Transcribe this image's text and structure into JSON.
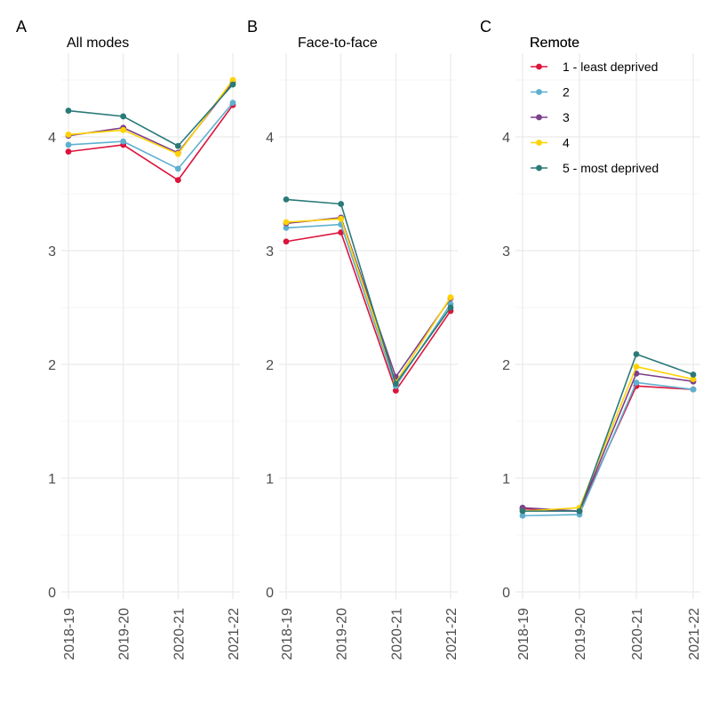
{
  "legend": {
    "title": "Remote",
    "groups": [
      {
        "label": "1 - least deprived",
        "color": "#dc143c"
      },
      {
        "label": "2",
        "color": "#5fb0d0"
      },
      {
        "label": "3",
        "color": "#7b3f8c"
      },
      {
        "label": "4",
        "color": "#ffd200"
      },
      {
        "label": "5 - most deprived",
        "color": "#2a7a78"
      }
    ]
  },
  "chart_data": [
    {
      "type": "line",
      "panel_letter": "A",
      "title": "All modes",
      "categories": [
        "2018-19",
        "2019-20",
        "2020-21",
        "2021-22"
      ],
      "ylim": [
        0,
        4.7
      ],
      "yticks": [
        "0",
        "1",
        "2",
        "3",
        "4"
      ],
      "series": [
        {
          "name": "1 - least deprived",
          "values": [
            3.87,
            3.93,
            3.62,
            4.28
          ]
        },
        {
          "name": "2",
          "values": [
            3.93,
            3.96,
            3.72,
            4.3
          ]
        },
        {
          "name": "3",
          "values": [
            4.01,
            4.08,
            3.86,
            4.48
          ]
        },
        {
          "name": "4",
          "values": [
            4.02,
            4.06,
            3.85,
            4.5
          ]
        },
        {
          "name": "5 - most deprived",
          "values": [
            4.23,
            4.18,
            3.92,
            4.46
          ]
        }
      ]
    },
    {
      "type": "line",
      "panel_letter": "B",
      "title": "Face-to-face",
      "categories": [
        "2018-19",
        "2019-20",
        "2020-21",
        "2021-22"
      ],
      "ylim": [
        0,
        4.7
      ],
      "yticks": [
        "0",
        "1",
        "2",
        "3",
        "4"
      ],
      "series": [
        {
          "name": "1 - least deprived",
          "values": [
            3.08,
            3.16,
            1.77,
            2.47
          ]
        },
        {
          "name": "2",
          "values": [
            3.2,
            3.23,
            1.81,
            2.53
          ]
        },
        {
          "name": "3",
          "values": [
            3.24,
            3.29,
            1.89,
            2.58
          ]
        },
        {
          "name": "4",
          "values": [
            3.25,
            3.28,
            1.84,
            2.59
          ]
        },
        {
          "name": "5 - most deprived",
          "values": [
            3.45,
            3.41,
            1.83,
            2.5
          ]
        }
      ]
    },
    {
      "type": "line",
      "panel_letter": "C",
      "title": "Remote",
      "categories": [
        "2018-19",
        "2019-20",
        "2020-21",
        "2021-22"
      ],
      "ylim": [
        0,
        4.7
      ],
      "yticks": [
        "0",
        "1",
        "2",
        "3",
        "4"
      ],
      "series": [
        {
          "name": "1 - least deprived",
          "values": [
            0.73,
            0.71,
            1.81,
            1.78
          ]
        },
        {
          "name": "2",
          "values": [
            0.67,
            0.68,
            1.84,
            1.78
          ]
        },
        {
          "name": "3",
          "values": [
            0.74,
            0.71,
            1.92,
            1.85
          ]
        },
        {
          "name": "4",
          "values": [
            0.71,
            0.74,
            1.98,
            1.87
          ]
        },
        {
          "name": "5 - most deprived",
          "values": [
            0.71,
            0.71,
            2.09,
            1.91
          ]
        }
      ]
    }
  ]
}
